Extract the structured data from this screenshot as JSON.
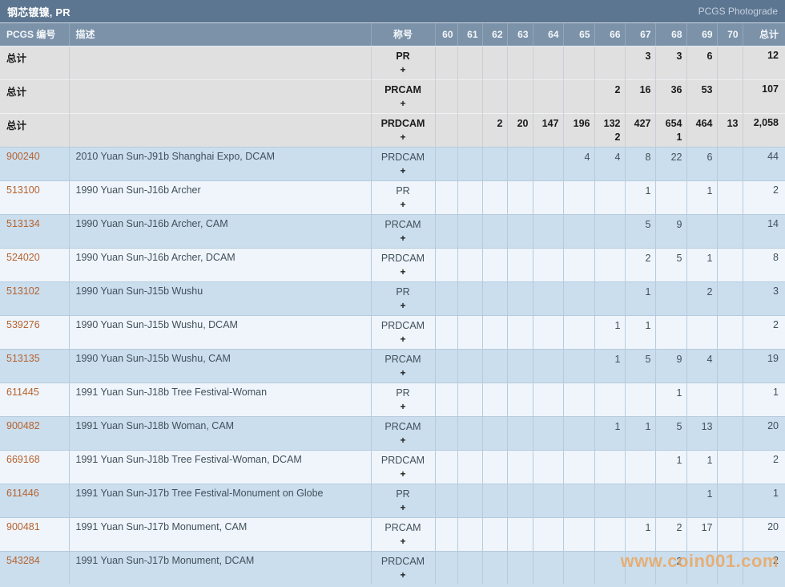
{
  "title_bar": {
    "title": "钢芯镀镍, PR",
    "right_label": "PCGS Photograde"
  },
  "watermark": "www.coin001.com",
  "colors": {
    "title_bar_bg": "#5c7590",
    "header_bg": "#7b92a9",
    "row_blue": "#cadeee",
    "row_light": "#eff5fb",
    "summary_gray": "#e0e0e0",
    "link": "#b7622e",
    "watermark": "#eca55d"
  },
  "table": {
    "headers": {
      "pcgs_number": "PCGS 编号",
      "description": "描述",
      "designation": "称号",
      "total": "总计"
    },
    "grade_columns": [
      "60",
      "61",
      "62",
      "63",
      "64",
      "65",
      "66",
      "67",
      "68",
      "69",
      "70"
    ],
    "plus_sign": "+",
    "summary_label": "总计",
    "summary_rows": [
      {
        "designation": "PR",
        "grades": {
          "67": "3",
          "68": "3",
          "69": "6"
        },
        "total": "12"
      },
      {
        "designation": "PRCAM",
        "grades": {
          "66": "2",
          "67": "16",
          "68": "36",
          "69": "53"
        },
        "total": "107"
      },
      {
        "designation": "PRDCAM",
        "grades": {
          "62": "2",
          "63": "20",
          "64": "147",
          "65": "196",
          "66": "132",
          "67": "427",
          "68": "654",
          "69": "464",
          "70": "13"
        },
        "plus": {
          "66": "2",
          "68": "1"
        },
        "total": "2,058"
      }
    ],
    "rows": [
      {
        "number": "900240",
        "description": "2010 Yuan Sun-J91b Shanghai Expo, DCAM",
        "designation": "PRDCAM",
        "grades": {
          "65": "4",
          "66": "4",
          "67": "8",
          "68": "22",
          "69": "6"
        },
        "total": "44"
      },
      {
        "number": "513100",
        "description": "1990 Yuan Sun-J16b Archer",
        "designation": "PR",
        "grades": {
          "67": "1",
          "69": "1"
        },
        "total": "2"
      },
      {
        "number": "513134",
        "description": "1990 Yuan Sun-J16b Archer, CAM",
        "designation": "PRCAM",
        "grades": {
          "67": "5",
          "68": "9"
        },
        "total": "14"
      },
      {
        "number": "524020",
        "description": "1990 Yuan Sun-J16b Archer, DCAM",
        "designation": "PRDCAM",
        "grades": {
          "67": "2",
          "68": "5",
          "69": "1"
        },
        "total": "8"
      },
      {
        "number": "513102",
        "description": "1990 Yuan Sun-J15b Wushu",
        "designation": "PR",
        "grades": {
          "67": "1",
          "69": "2"
        },
        "total": "3"
      },
      {
        "number": "539276",
        "description": "1990 Yuan Sun-J15b Wushu, DCAM",
        "designation": "PRDCAM",
        "grades": {
          "66": "1",
          "67": "1"
        },
        "total": "2"
      },
      {
        "number": "513135",
        "description": "1990 Yuan Sun-J15b Wushu, CAM",
        "designation": "PRCAM",
        "grades": {
          "66": "1",
          "67": "5",
          "68": "9",
          "69": "4"
        },
        "total": "19"
      },
      {
        "number": "611445",
        "description": "1991 Yuan Sun-J18b Tree Festival-Woman",
        "designation": "PR",
        "grades": {
          "68": "1"
        },
        "total": "1"
      },
      {
        "number": "900482",
        "description": "1991 Yuan Sun-J18b Woman, CAM",
        "designation": "PRCAM",
        "grades": {
          "66": "1",
          "67": "1",
          "68": "5",
          "69": "13"
        },
        "total": "20"
      },
      {
        "number": "669168",
        "description": "1991 Yuan Sun-J18b Tree Festival-Woman, DCAM",
        "designation": "PRDCAM",
        "grades": {
          "68": "1",
          "69": "1"
        },
        "total": "2"
      },
      {
        "number": "611446",
        "description": "1991 Yuan Sun-J17b Tree Festival-Monument on Globe",
        "designation": "PR",
        "grades": {
          "69": "1"
        },
        "total": "1"
      },
      {
        "number": "900481",
        "description": "1991 Yuan Sun-J17b Monument, CAM",
        "designation": "PRCAM",
        "grades": {
          "67": "1",
          "68": "2",
          "69": "17"
        },
        "total": "20"
      },
      {
        "number": "543284",
        "description": "1991 Yuan Sun-J17b Monument, DCAM",
        "designation": "PRDCAM",
        "grades": {
          "68": "2"
        },
        "total": "2"
      }
    ]
  }
}
